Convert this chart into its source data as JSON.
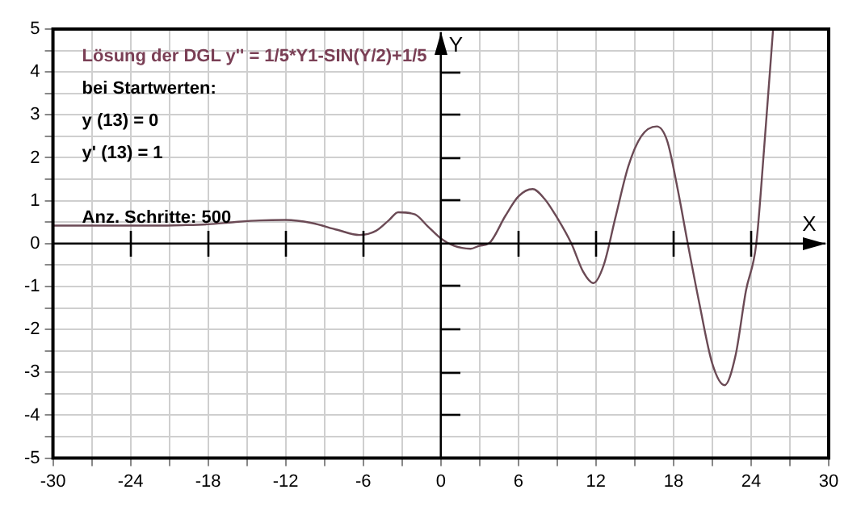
{
  "chart_data": {
    "type": "line",
    "annotations": [
      "Lösung der DGL y'' = 1/5*Y1-SIN(Y/2)+1/5",
      "bei Startwerten:",
      "y (13) = 0",
      "y' (13) = 1",
      "Anz. Schritte: 500"
    ],
    "xlabel": "X",
    "ylabel": "Y",
    "series": [
      {
        "color": "#6b4a55",
        "x": [
          -30,
          -26,
          -22,
          -20,
          -18,
          -16,
          -14,
          -12,
          -10,
          -8,
          -6.3,
          -5,
          -4,
          -3.3,
          -2,
          -1,
          0,
          1,
          2.3,
          3,
          3.7,
          5,
          6,
          7.1,
          8,
          9,
          10.1,
          11,
          11.8,
          12.6,
          13.5,
          14.5,
          15.5,
          16.7,
          17.5,
          18.3,
          19.1,
          20,
          21,
          21.95,
          22.8,
          23.6,
          24.4,
          25,
          25.7
        ],
        "values": [
          0.42,
          0.42,
          0.42,
          0.43,
          0.45,
          0.5,
          0.54,
          0.55,
          0.48,
          0.32,
          0.2,
          0.3,
          0.55,
          0.73,
          0.68,
          0.4,
          0.12,
          -0.05,
          -0.12,
          -0.05,
          0,
          0.65,
          1.1,
          1.27,
          1.05,
          0.6,
          0,
          -0.65,
          -0.92,
          -0.5,
          0.6,
          1.8,
          2.5,
          2.73,
          2.4,
          1.3,
          0,
          -1.4,
          -2.8,
          -3.3,
          -2.6,
          -1.1,
          0,
          2.2,
          5
        ]
      }
    ],
    "xlim": [
      -30,
      30
    ],
    "xticks": [
      -30,
      {
        "value": -27,
        "label": null
      },
      -24,
      {
        "value": -21,
        "label": null
      },
      -18,
      {
        "value": -15,
        "label": null
      },
      -12,
      {
        "value": -9,
        "label": null
      },
      -6,
      {
        "value": -3,
        "label": null
      },
      0,
      {
        "value": 3,
        "label": null
      },
      6,
      {
        "value": 9,
        "label": null
      },
      12,
      {
        "value": 15,
        "label": null
      },
      18,
      {
        "value": 21,
        "label": null
      },
      24,
      {
        "value": 27,
        "label": null
      },
      30
    ],
    "ylim": [
      -5,
      5
    ],
    "yticks": [
      -5,
      {
        "value": -4.5,
        "label": null
      },
      -4,
      {
        "value": -3.5,
        "label": null
      },
      -3,
      {
        "value": -2.5,
        "label": null
      },
      -2,
      {
        "value": -1.5,
        "label": null
      },
      -1,
      {
        "value": -0.5,
        "label": null
      },
      0,
      {
        "value": 0.5,
        "label": null
      },
      1,
      {
        "value": 1.5,
        "label": null
      },
      2,
      {
        "value": 2.5,
        "label": null
      },
      3,
      {
        "value": 3.5,
        "label": null
      },
      4,
      {
        "value": 4.5,
        "label": null
      },
      5
    ],
    "grid": true,
    "legend": false,
    "marker": "none",
    "line_style": "solid"
  }
}
